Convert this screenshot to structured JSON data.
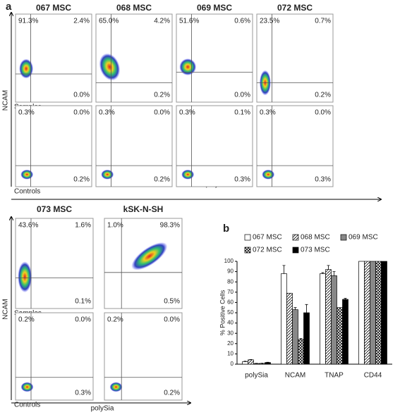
{
  "panel_a": {
    "label": "a",
    "groups": [
      {
        "y_label": "NCAM",
        "x_label": "polySia",
        "row_labels": [
          "Samples",
          "Controls"
        ],
        "plots": [
          {
            "title": "067 MSC",
            "samples": [
              "91.3%",
              "2.4%",
              "0.0%"
            ],
            "controls": [
              "0.3%",
              "0.0%",
              "0.2%"
            ]
          },
          {
            "title": "068 MSC",
            "samples": [
              "65.0%",
              "4.2%",
              "0.2%"
            ],
            "controls": [
              "0.3%",
              "0.0%",
              "0.2%"
            ]
          },
          {
            "title": "069 MSC",
            "samples": [
              "51.6%",
              "0.6%",
              "0.0%"
            ],
            "controls": [
              "0.3%",
              "0.1%",
              "0.3%"
            ]
          },
          {
            "title": "072 MSC",
            "samples": [
              "23.5%",
              "0.7%",
              "0.2%"
            ],
            "controls": [
              "0.3%",
              "0.0%",
              "0.3%"
            ]
          }
        ]
      },
      {
        "y_label": "NCAM",
        "x_label": "polySia",
        "row_labels": [
          "Samples",
          "Controls"
        ],
        "plots": [
          {
            "title": "073 MSC",
            "samples": [
              "43.6%",
              "1.6%",
              "0.1%"
            ],
            "controls": [
              "0.2%",
              "0.0%",
              "0.3%"
            ]
          },
          {
            "title": "kSK-N-SH",
            "samples": [
              "1.0%",
              "98.3%",
              "0.5%"
            ],
            "controls": [
              "0.2%",
              "0.0%",
              "0.2%"
            ]
          }
        ]
      }
    ]
  },
  "chart_data": {
    "type": "bar",
    "panel_label": "b",
    "y_label": "% Positive Cells",
    "categories": [
      "polySia",
      "NCAM",
      "TNAP",
      "CD44"
    ],
    "series": [
      {
        "name": "067 MSC",
        "color": "#ffffff",
        "pattern": "none",
        "values": [
          2.4,
          88,
          88,
          100
        ],
        "errors": [
          0.5,
          8,
          1,
          0
        ]
      },
      {
        "name": "068 MSC",
        "color": "#ffffff",
        "pattern": "hatch",
        "values": [
          4.2,
          69,
          92,
          100
        ],
        "errors": [
          0.3,
          0,
          4,
          0
        ]
      },
      {
        "name": "069 MSC",
        "color": "#888888",
        "pattern": "none",
        "values": [
          0.6,
          53,
          86,
          100
        ],
        "errors": [
          0.2,
          2,
          4,
          0
        ]
      },
      {
        "name": "072 MSC",
        "color": "#ffffff",
        "pattern": "crosshatch",
        "values": [
          0.7,
          24,
          55,
          100
        ],
        "errors": [
          0.2,
          1,
          0,
          0
        ]
      },
      {
        "name": "073 MSC",
        "color": "#000000",
        "pattern": "none",
        "values": [
          1.6,
          50,
          63,
          100
        ],
        "errors": [
          0.3,
          8,
          1,
          0
        ]
      }
    ],
    "ylim": [
      0,
      100
    ],
    "yticks": [
      0,
      10,
      20,
      30,
      40,
      50,
      60,
      70,
      80,
      90,
      100
    ]
  }
}
